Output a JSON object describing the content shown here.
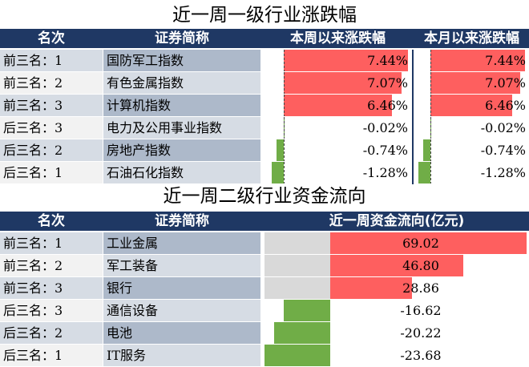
{
  "table1": {
    "title": "近一周一级行业涨跌幅",
    "headers": {
      "rank": "名次",
      "name": "证券简称",
      "week": "本周以来涨跌幅",
      "month": "本月以来涨跌幅"
    },
    "rows": [
      {
        "rank": "前三名：1",
        "name": "国防军工指数",
        "week_label": "7.44%",
        "month_label": "7.44%"
      },
      {
        "rank": "前三名：2",
        "name": "有色金属指数",
        "week_label": "7.07%",
        "month_label": "7.07%"
      },
      {
        "rank": "前三名：3",
        "name": "计算机指数",
        "week_label": "6.46%",
        "month_label": "6.46%"
      },
      {
        "rank": "后三名：3",
        "name": "电力及公用事业指数",
        "week_label": "-0.02%",
        "month_label": "-0.02%"
      },
      {
        "rank": "后三名：2",
        "name": "房地产指数",
        "week_label": "-0.74%",
        "month_label": "-0.74%"
      },
      {
        "rank": "后三名：1",
        "name": "石油石化指数",
        "week_label": "-1.28%",
        "month_label": "-1.28%"
      }
    ]
  },
  "table2": {
    "title": "近一周二级行业资金流向",
    "headers": {
      "rank": "名次",
      "name": "证券简称",
      "flow": "近一周资金流向(亿元)"
    },
    "rows": [
      {
        "rank": "前三名：1",
        "name": "工业金属",
        "flow_label": "69.02"
      },
      {
        "rank": "前三名：2",
        "name": "军工装备",
        "flow_label": "46.80"
      },
      {
        "rank": "前三名：3",
        "name": "银行",
        "flow_label": "28.86"
      },
      {
        "rank": "后三名：3",
        "name": "通信设备",
        "flow_label": "-16.62"
      },
      {
        "rank": "后三名：2",
        "name": "电池",
        "flow_label": "-20.22"
      },
      {
        "rank": "后三名：1",
        "name": "IT服务",
        "flow_label": "-23.68"
      }
    ]
  },
  "chart_data": [
    {
      "type": "bar",
      "title": "近一周一级行业涨跌幅",
      "categories": [
        "国防军工指数",
        "有色金属指数",
        "计算机指数",
        "电力及公用事业指数",
        "房地产指数",
        "石油石化指数"
      ],
      "series": [
        {
          "name": "本周以来涨跌幅",
          "values": [
            7.44,
            7.07,
            6.46,
            -0.02,
            -0.74,
            -1.28
          ],
          "unit": "%"
        },
        {
          "name": "本月以来涨跌幅",
          "values": [
            7.44,
            7.07,
            6.46,
            -0.02,
            -0.74,
            -1.28
          ],
          "unit": "%"
        }
      ]
    },
    {
      "type": "bar",
      "title": "近一周二级行业资金流向",
      "categories": [
        "工业金属",
        "军工装备",
        "银行",
        "通信设备",
        "电池",
        "IT服务"
      ],
      "series": [
        {
          "name": "近一周资金流向(亿元)",
          "values": [
            69.02,
            46.8,
            28.86,
            -16.62,
            -20.22,
            -23.68
          ]
        }
      ]
    }
  ],
  "colors": {
    "header_bg": "#1f3864",
    "positive_bar": "#fe5f5f",
    "negative_bar": "#70ad47",
    "bar_track": "#d9d9d9"
  }
}
